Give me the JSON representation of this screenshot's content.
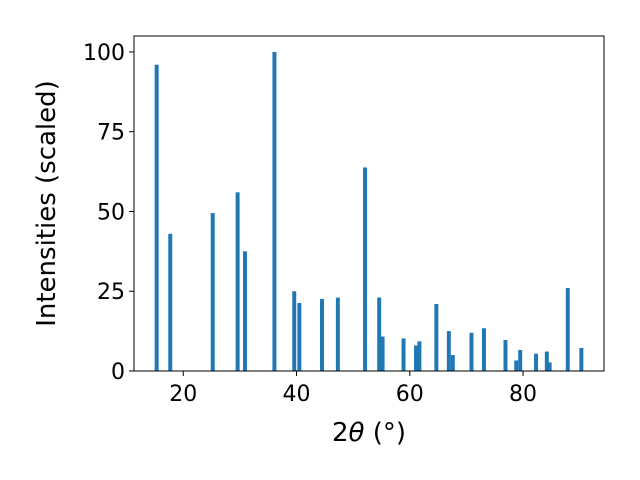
{
  "chart_data": {
    "type": "bar",
    "xlabel_prefix": "2",
    "xlabel_symbol": "θ",
    "xlabel_suffix": " (°)",
    "ylabel": "Intensities (scaled)",
    "xlim": [
      11.3,
      94.3
    ],
    "ylim": [
      0,
      105
    ],
    "xticks": [
      20,
      40,
      60,
      80
    ],
    "yticks": [
      0,
      25,
      50,
      75,
      100
    ],
    "bar_color": "#1f77b4",
    "bar_width": 0.7,
    "grid": false,
    "x": [
      15.3,
      17.7,
      25.2,
      29.6,
      30.9,
      36.1,
      39.6,
      40.5,
      44.5,
      47.3,
      52.1,
      54.6,
      55.2,
      58.9,
      61.1,
      61.7,
      64.7,
      66.9,
      67.6,
      70.9,
      73.1,
      76.9,
      78.8,
      79.5,
      82.3,
      84.2,
      84.7,
      87.9,
      90.3
    ],
    "values": [
      96,
      43,
      49.5,
      56,
      37.5,
      100,
      25,
      21.3,
      22.6,
      23,
      63.8,
      23,
      10.8,
      10.2,
      8,
      9.3,
      21,
      12.5,
      5,
      12,
      13.4,
      9.7,
      3.3,
      6.6,
      5.4,
      6.1,
      2.7,
      26,
      7.2
    ]
  }
}
